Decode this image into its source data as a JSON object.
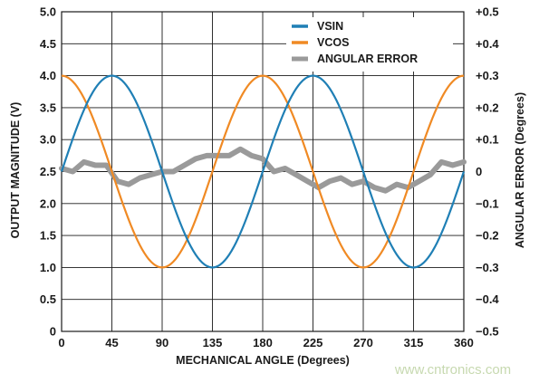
{
  "chart_data": {
    "type": "line",
    "xlabel": "MECHANICAL ANGLE (Degrees)",
    "ylabel": "OUTPUT MAGNITUDE (V)",
    "y2label": "ANGULAR ERROR (Degrees)",
    "xlim": [
      0,
      360
    ],
    "ylim": [
      0.0,
      5.0
    ],
    "y2lim": [
      -0.5,
      0.5
    ],
    "x_ticks": [
      "0",
      "45",
      "90",
      "135",
      "180",
      "225",
      "270",
      "315",
      "360"
    ],
    "y_ticks": [
      "0",
      "0.5",
      "1.0",
      "1.5",
      "2.0",
      "2.5",
      "3.0",
      "3.5",
      "4.0",
      "4.5",
      "5.0"
    ],
    "y2_ticks": [
      "−0.5",
      "−0.4",
      "−0.3",
      "−0.2",
      "−0.1",
      "0",
      "+0.1",
      "+0.2",
      "+0.3",
      "+0.4",
      "+0.5"
    ],
    "grid": true,
    "legend_position": "top-right",
    "series": [
      {
        "name": "VSIN",
        "color": "#1f7fb5",
        "axis": "left",
        "x": [
          0,
          10,
          20,
          30,
          40,
          45,
          50,
          60,
          70,
          80,
          90,
          100,
          110,
          120,
          130,
          135,
          140,
          150,
          160,
          170,
          180,
          190,
          200,
          210,
          220,
          225,
          230,
          240,
          250,
          260,
          270,
          280,
          290,
          300,
          310,
          315,
          320,
          330,
          340,
          350,
          360
        ],
        "y": [
          2.5,
          2.85,
          3.2,
          3.55,
          3.86,
          4.0,
          3.86,
          3.55,
          3.2,
          2.85,
          2.5,
          2.15,
          1.8,
          1.45,
          1.14,
          1.0,
          1.14,
          1.45,
          1.8,
          2.15,
          2.5,
          2.85,
          3.2,
          3.55,
          3.86,
          4.0,
          3.86,
          3.55,
          3.2,
          2.85,
          2.5,
          2.15,
          1.8,
          1.45,
          1.14,
          1.0,
          1.14,
          1.45,
          1.8,
          2.15,
          2.5
        ]
      },
      {
        "name": "VCOS",
        "color": "#f08a24",
        "axis": "left",
        "x": [
          0,
          10,
          20,
          30,
          40,
          45,
          50,
          60,
          70,
          80,
          90,
          100,
          110,
          120,
          130,
          135,
          140,
          150,
          160,
          170,
          180,
          190,
          200,
          210,
          220,
          225,
          230,
          240,
          250,
          260,
          270,
          280,
          290,
          300,
          310,
          315,
          320,
          330,
          340,
          350,
          360
        ],
        "y": [
          4.0,
          3.85,
          3.44,
          2.85,
          2.15,
          2.5,
          2.85,
          2.15,
          1.56,
          1.15,
          1.0,
          1.15,
          1.56,
          2.15,
          2.85,
          2.5,
          2.15,
          2.85,
          3.44,
          3.85,
          4.0,
          3.85,
          3.44,
          2.85,
          2.15,
          2.5,
          2.85,
          2.15,
          1.56,
          1.15,
          1.0,
          1.15,
          1.56,
          2.15,
          2.85,
          2.5,
          2.15,
          2.85,
          3.44,
          3.85,
          4.0
        ]
      },
      {
        "name": "ANGULAR ERROR",
        "color": "#9a9a9a",
        "axis": "right",
        "x": [
          0,
          10,
          20,
          30,
          40,
          50,
          60,
          70,
          80,
          90,
          100,
          110,
          120,
          130,
          140,
          150,
          160,
          170,
          180,
          190,
          200,
          210,
          220,
          230,
          240,
          250,
          260,
          270,
          280,
          290,
          300,
          310,
          320,
          330,
          340,
          350,
          360
        ],
        "y": [
          0.01,
          0.0,
          0.03,
          0.02,
          0.02,
          -0.03,
          -0.04,
          -0.02,
          -0.01,
          0.0,
          0.0,
          0.02,
          0.04,
          0.05,
          0.05,
          0.05,
          0.07,
          0.05,
          0.04,
          0.0,
          0.01,
          -0.01,
          -0.03,
          -0.05,
          -0.03,
          -0.02,
          -0.04,
          -0.03,
          -0.05,
          -0.06,
          -0.04,
          -0.05,
          -0.03,
          -0.01,
          0.03,
          0.02,
          0.03
        ]
      }
    ]
  },
  "watermark": "www.cntronics.com"
}
